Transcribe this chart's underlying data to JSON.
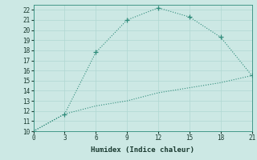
{
  "xlabel": "Humidex (Indice chaleur)",
  "line1_x": [
    0,
    3,
    6,
    9,
    12,
    15,
    18,
    21
  ],
  "line1_y": [
    10,
    11.7,
    17.8,
    21.0,
    22.2,
    21.3,
    19.3,
    15.5
  ],
  "line2_x": [
    0,
    3,
    6,
    9,
    12,
    15,
    18,
    21
  ],
  "line2_y": [
    10,
    11.7,
    12.5,
    13.0,
    13.8,
    14.3,
    14.8,
    15.5
  ],
  "line_color": "#2e8b7a",
  "bg_color": "#cce8e4",
  "grid_color": "#b0d8d2",
  "xlim": [
    0,
    21
  ],
  "ylim": [
    10,
    22.5
  ],
  "xticks": [
    0,
    3,
    6,
    9,
    12,
    15,
    18,
    21
  ],
  "yticks": [
    10,
    11,
    12,
    13,
    14,
    15,
    16,
    17,
    18,
    19,
    20,
    21,
    22
  ]
}
